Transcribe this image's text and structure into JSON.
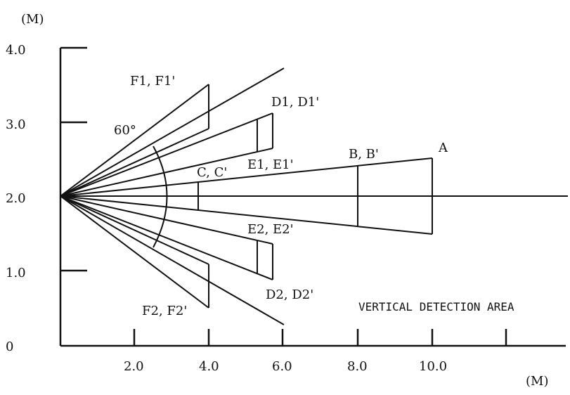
{
  "units": {
    "y": "(M)",
    "x": "(M)"
  },
  "y_ticks": [
    "4.0",
    "3.0",
    "2.0",
    "1.0",
    "0"
  ],
  "x_ticks": [
    "2.0",
    "4.0",
    "6.0",
    "8.0",
    "10.0"
  ],
  "labels": {
    "angle": "60°",
    "f1": "F1, F1'",
    "d1": "D1, D1'",
    "e1": "E1, E1'",
    "cc": "C, C'",
    "bb": "B, B'",
    "a": "A",
    "e2": "E2, E2'",
    "d2": "D2, D2'",
    "f2": "F2, F2'"
  },
  "caption": "VERTICAL DETECTION AREA"
}
